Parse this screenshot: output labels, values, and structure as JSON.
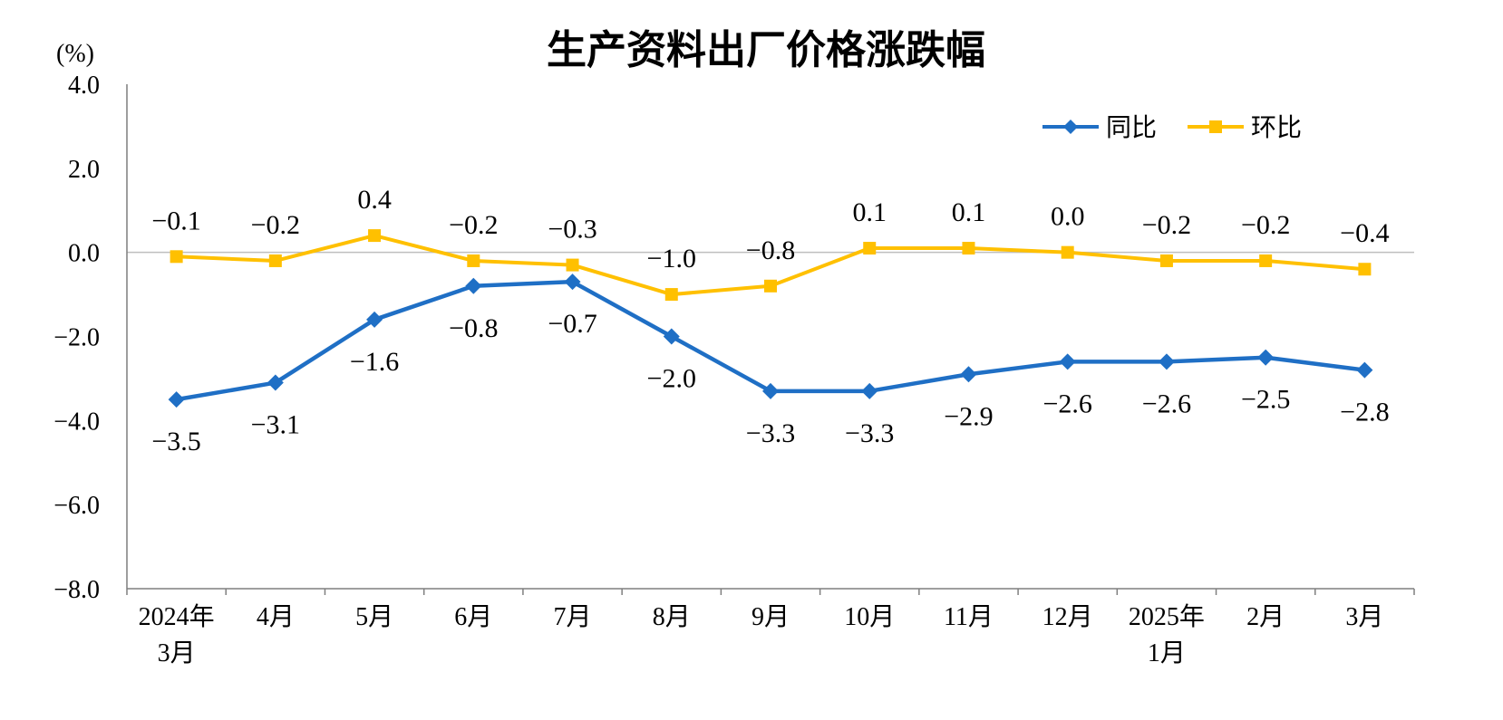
{
  "page": {
    "background": "#FFFFFF"
  },
  "chart_data": {
    "type": "line",
    "title": "生产资料出厂价格涨跌幅",
    "ylabel": "(%)",
    "categories": [
      [
        "2024年",
        "3月"
      ],
      [
        "4月"
      ],
      [
        "5月"
      ],
      [
        "6月"
      ],
      [
        "7月"
      ],
      [
        "8月"
      ],
      [
        "9月"
      ],
      [
        "10月"
      ],
      [
        "11月"
      ],
      [
        "12月"
      ],
      [
        "2025年",
        "1月"
      ],
      [
        "2月"
      ],
      [
        "3月"
      ]
    ],
    "series": [
      {
        "name": "同比",
        "color": "#1F6FC5",
        "marker": "diamond",
        "label_position": "below",
        "values": [
          -3.5,
          -3.1,
          -1.6,
          -0.8,
          -0.7,
          -2.0,
          -3.3,
          -3.3,
          -2.9,
          -2.6,
          -2.6,
          -2.5,
          -2.8
        ],
        "labels": [
          "−3.5",
          "−3.1",
          "−1.6",
          "−0.8",
          "−0.7",
          "−2.0",
          "−3.3",
          "−3.3",
          "−2.9",
          "−2.6",
          "−2.6",
          "−2.5",
          "−2.8"
        ]
      },
      {
        "name": "环比",
        "color": "#FFC000",
        "marker": "square",
        "label_position": "above",
        "values": [
          -0.1,
          -0.2,
          0.4,
          -0.2,
          -0.3,
          -1.0,
          -0.8,
          0.1,
          0.1,
          0.0,
          -0.2,
          -0.2,
          -0.4
        ],
        "labels": [
          "−0.1",
          "−0.2",
          "0.4",
          "−0.2",
          "−0.3",
          "−1.0",
          "−0.8",
          "0.1",
          "0.1",
          "0.0",
          "−0.2",
          "−0.2",
          "−0.4"
        ]
      }
    ],
    "ylim": [
      -8.0,
      4.0
    ],
    "yticks": [
      {
        "value": 4,
        "label": "4.0"
      },
      {
        "value": 2,
        "label": "2.0"
      },
      {
        "value": 0,
        "label": "0.0"
      },
      {
        "value": -2,
        "label": "−2.0"
      },
      {
        "value": -4,
        "label": "−4.0"
      },
      {
        "value": -6,
        "label": "−6.0"
      },
      {
        "value": -8,
        "label": "−8.0"
      }
    ],
    "grid": false,
    "zero_line": true,
    "legend_position": "top-right",
    "axis_color": "#7F7F7F",
    "zero_line_color": "#BFBFBF"
  }
}
